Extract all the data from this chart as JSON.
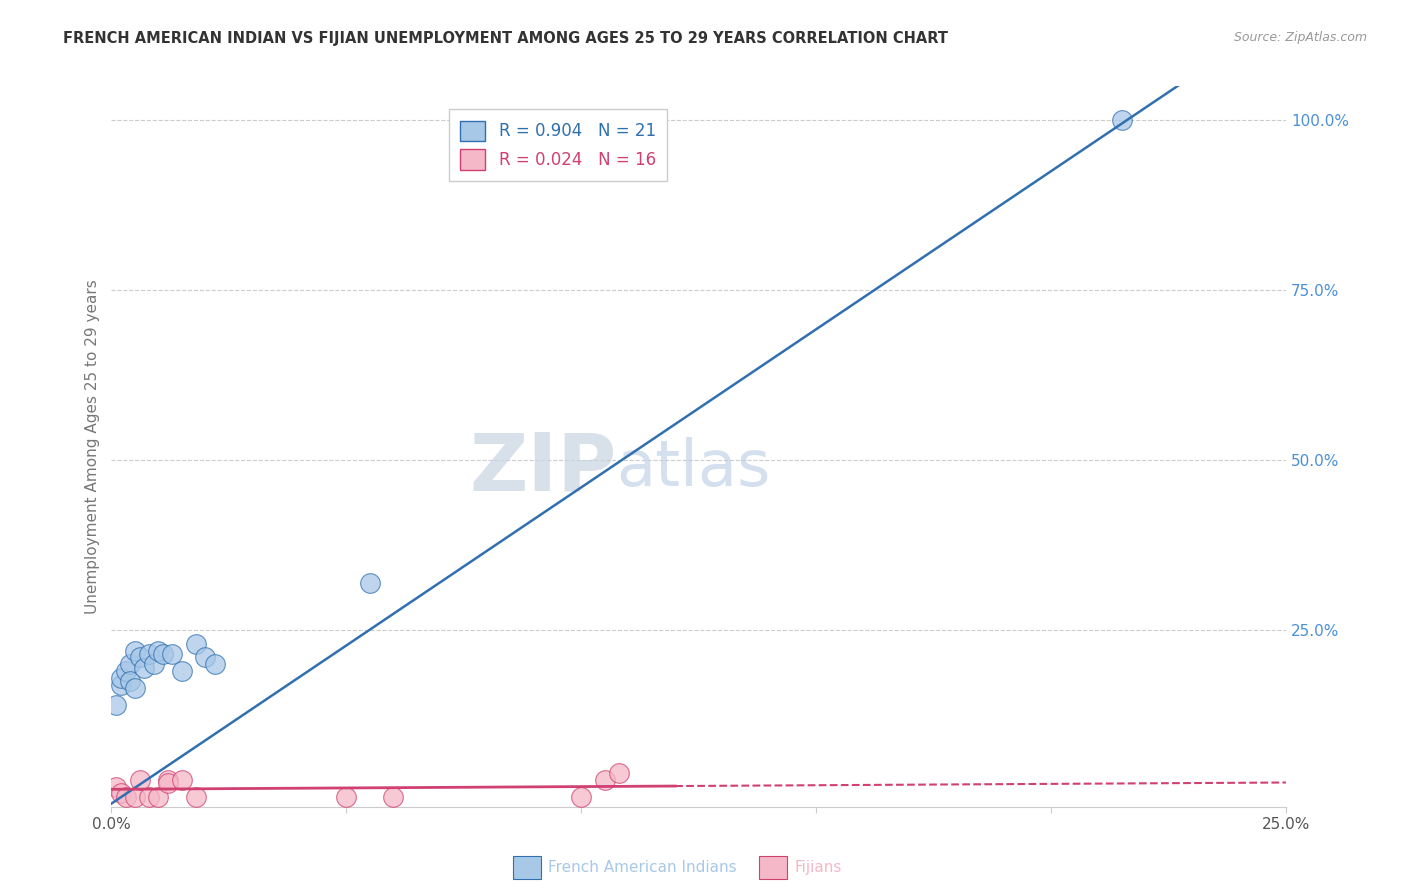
{
  "title": "FRENCH AMERICAN INDIAN VS FIJIAN UNEMPLOYMENT AMONG AGES 25 TO 29 YEARS CORRELATION CHART",
  "source": "Source: ZipAtlas.com",
  "ylabel": "Unemployment Among Ages 25 to 29 years",
  "xlim": [
    0.0,
    0.25
  ],
  "ylim": [
    -0.01,
    1.05
  ],
  "xticks": [
    0.0,
    0.05,
    0.1,
    0.15,
    0.2,
    0.25
  ],
  "yticks": [
    0.0,
    0.25,
    0.5,
    0.75,
    1.0
  ],
  "ytick_labels": [
    "",
    "25.0%",
    "50.0%",
    "75.0%",
    "100.0%"
  ],
  "xtick_labels": [
    "0.0%",
    "",
    "",
    "",
    "",
    "25.0%"
  ],
  "blue_x": [
    0.001,
    0.002,
    0.002,
    0.003,
    0.004,
    0.004,
    0.005,
    0.005,
    0.006,
    0.007,
    0.008,
    0.009,
    0.01,
    0.011,
    0.013,
    0.015,
    0.018,
    0.02,
    0.022,
    0.055,
    0.215
  ],
  "blue_y": [
    0.14,
    0.17,
    0.18,
    0.19,
    0.2,
    0.175,
    0.165,
    0.22,
    0.21,
    0.195,
    0.215,
    0.2,
    0.22,
    0.215,
    0.215,
    0.19,
    0.23,
    0.21,
    0.2,
    0.32,
    1.0
  ],
  "pink_x": [
    0.001,
    0.002,
    0.003,
    0.005,
    0.006,
    0.008,
    0.01,
    0.012,
    0.012,
    0.015,
    0.018,
    0.05,
    0.06,
    0.1,
    0.105,
    0.108
  ],
  "pink_y": [
    0.02,
    0.01,
    0.005,
    0.005,
    0.03,
    0.005,
    0.005,
    0.03,
    0.025,
    0.03,
    0.005,
    0.005,
    0.005,
    0.005,
    0.03,
    0.04
  ],
  "blue_color": "#a8c8e8",
  "blue_edge_color": "#3070b0",
  "pink_color": "#f5b8c8",
  "pink_edge_color": "#d04070",
  "blue_line_color": "#3070b0",
  "pink_line_color": "#d04070",
  "blue_R": "0.904",
  "blue_N": "21",
  "pink_R": "0.024",
  "pink_N": "16",
  "legend_label_blue": "French American Indians",
  "legend_label_pink": "Fijians",
  "watermark_ZIP": "ZIP",
  "watermark_atlas": "atlas",
  "background_color": "#ffffff",
  "grid_color": "#cccccc",
  "title_color": "#333333",
  "axis_label_color": "#777777",
  "yaxis_tick_color": "#4a90d9"
}
